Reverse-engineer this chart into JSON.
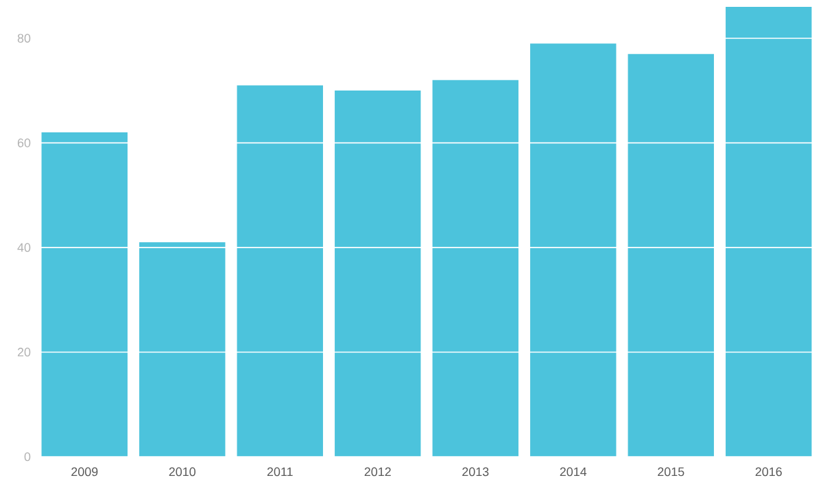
{
  "chart_data": {
    "type": "bar",
    "categories": [
      "2009",
      "2010",
      "2011",
      "2012",
      "2013",
      "2014",
      "2015",
      "2016"
    ],
    "values": [
      62,
      41,
      71,
      70,
      72,
      79,
      77,
      86
    ],
    "color": "#4cc3dc",
    "ylim": [
      0,
      86
    ],
    "yticks": [
      0,
      20,
      40,
      60,
      80
    ],
    "grid": "y"
  }
}
